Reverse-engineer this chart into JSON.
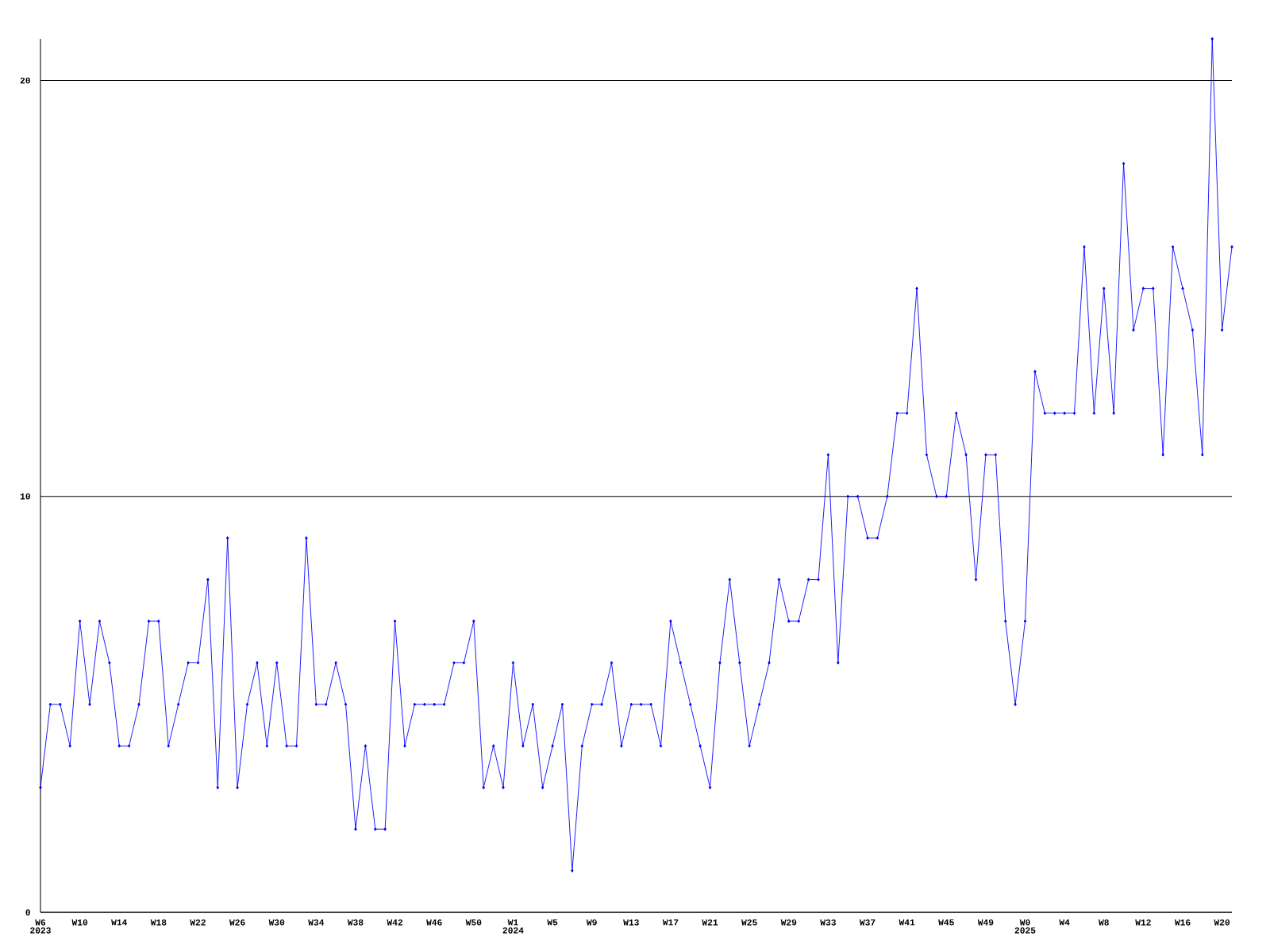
{
  "chart_data": {
    "type": "line",
    "categories": [
      "W6",
      null,
      null,
      null,
      "W10",
      null,
      null,
      null,
      "W14",
      null,
      null,
      null,
      "W18",
      null,
      null,
      null,
      "W22",
      null,
      null,
      null,
      "W26",
      null,
      null,
      null,
      "W30",
      null,
      null,
      null,
      "W34",
      null,
      null,
      null,
      "W38",
      null,
      null,
      null,
      "W42",
      null,
      null,
      null,
      "W46",
      null,
      null,
      null,
      "W50",
      null,
      null,
      null,
      "W1",
      null,
      null,
      null,
      "W5",
      null,
      null,
      null,
      "W9",
      null,
      null,
      null,
      "W13",
      null,
      null,
      null,
      "W17",
      null,
      null,
      null,
      "W21",
      null,
      null,
      null,
      "W25",
      null,
      null,
      null,
      "W29",
      null,
      null,
      null,
      "W33",
      null,
      null,
      null,
      "W37",
      null,
      null,
      null,
      "W41",
      null,
      null,
      null,
      "W45",
      null,
      null,
      null,
      "W49",
      null,
      null,
      null,
      "W0",
      null,
      null,
      null,
      "W4",
      null,
      null,
      null,
      "W8",
      null,
      null,
      null,
      "W12",
      null,
      null,
      null,
      "W16",
      null,
      null,
      null,
      "W20",
      null
    ],
    "values": [
      3,
      5,
      5,
      4,
      7,
      5,
      7,
      6,
      4,
      4,
      5,
      7,
      7,
      4,
      5,
      6,
      6,
      8,
      3,
      9,
      3,
      5,
      6,
      4,
      6,
      4,
      4,
      9,
      5,
      5,
      6,
      5,
      2,
      4,
      2,
      2,
      7,
      4,
      5,
      5,
      5,
      5,
      6,
      6,
      7,
      3,
      4,
      3,
      6,
      4,
      5,
      3,
      4,
      5,
      1,
      4,
      5,
      5,
      6,
      4,
      5,
      5,
      5,
      4,
      7,
      6,
      5,
      4,
      3,
      6,
      8,
      6,
      4,
      5,
      6,
      8,
      7,
      7,
      8,
      8,
      11,
      6,
      10,
      10,
      9,
      9,
      10,
      12,
      12,
      15,
      11,
      10,
      10,
      12,
      11,
      8,
      11,
      11,
      7,
      5,
      7,
      13,
      12,
      12,
      12,
      12,
      16,
      12,
      15,
      12,
      18,
      14,
      15,
      15,
      11,
      16,
      15,
      14,
      11,
      21,
      14,
      16
    ],
    "color": "#0000ff",
    "ylim": [
      0,
      21
    ],
    "yticks": [
      0,
      10,
      20
    ],
    "grid": "y",
    "marker": "diamond",
    "line_style": "solid",
    "annotations": [
      "2023",
      "2024",
      "2025"
    ]
  }
}
